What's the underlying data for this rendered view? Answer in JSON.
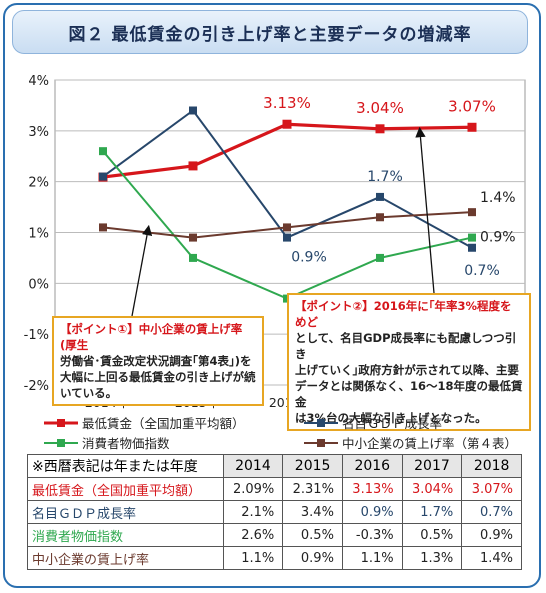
{
  "title": "図２ 最低賃金の引き上げ率と主要データの増減率",
  "colors": {
    "frame": "#2a6fb0",
    "min_wage": "#d6161b",
    "gdp": "#27476b",
    "cpi": "#2fa84f",
    "sme_wage": "#6b3a2e",
    "callout_border": "#e7a623"
  },
  "chart_data": {
    "type": "line",
    "categories": [
      "2014年",
      "2015年",
      "2016年",
      "2017年",
      "2018年"
    ],
    "y_ticks": [
      "4%",
      "3%",
      "2%",
      "1%",
      "0%",
      "-1%",
      "-2%"
    ],
    "ylim": [
      -2,
      4
    ],
    "grid": true,
    "legend_placement": "bottom",
    "series": [
      {
        "name": "最低賃金（全国加重平均額）",
        "key": "min_wage",
        "values": [
          2.09,
          2.31,
          3.13,
          3.04,
          3.07
        ],
        "marker": "square"
      },
      {
        "name": "名目ＧＤＰ成長率",
        "key": "gdp",
        "values": [
          2.1,
          3.4,
          0.9,
          1.7,
          0.7
        ],
        "marker": "square"
      },
      {
        "name": "消費者物価指数",
        "key": "cpi",
        "values": [
          2.6,
          0.5,
          -0.3,
          0.5,
          0.9
        ],
        "marker": "square"
      },
      {
        "name": "中小企業の賃上げ率（第４表）",
        "key": "sme_wage",
        "values": [
          1.1,
          0.9,
          1.1,
          1.3,
          1.4
        ],
        "marker": "square"
      }
    ],
    "data_labels": [
      {
        "series": "min_wage",
        "index": 2,
        "text": "3.13%"
      },
      {
        "series": "min_wage",
        "index": 3,
        "text": "3.04%"
      },
      {
        "series": "min_wage",
        "index": 4,
        "text": "3.07%"
      },
      {
        "series": "gdp",
        "index": 2,
        "text": "0.9%"
      },
      {
        "series": "gdp",
        "index": 3,
        "text": "1.7%"
      },
      {
        "series": "gdp",
        "index": 4,
        "text": "0.7%"
      },
      {
        "series": "cpi",
        "index": 4,
        "text": "0.9%"
      },
      {
        "series": "sme_wage",
        "index": 4,
        "text": "1.4%"
      }
    ]
  },
  "callouts": {
    "point1": {
      "line1": "【ポイント①】中小企業の賃上げ率(厚生",
      "line2": "労働省･賃金改定状況調査｢第4表｣)を",
      "line3": "大幅に上回る最低賃金の引き上げが続",
      "line4": "いている。"
    },
    "point2": {
      "line1": "【ポイント②】2016年に｢年率3%程度をめど",
      "line2": "として、名目GDP成長率にも配慮しつつ引き",
      "line3": "上げていく｣政府方針が示されて以降、主要",
      "line4": "データとは関係なく、16～18年度の最低賃金",
      "line5": "は3%台の大幅な引き上げとなった。"
    }
  },
  "legend": {
    "min_wage": "最低賃金（全国加重平均額）",
    "gdp": "名目ＧＤＰ成長率",
    "cpi": "消費者物価指数",
    "sme_wage": "中小企業の賃上げ率（第４表）"
  },
  "table": {
    "note": "※西暦表記は年または年度",
    "years": [
      "2014",
      "2015",
      "2016",
      "2017",
      "2018"
    ],
    "rows": [
      {
        "label": "最低賃金（全国加重平均額）",
        "values": [
          "2.09%",
          "2.31%",
          "3.13%",
          "3.04%",
          "3.07%"
        ]
      },
      {
        "label": "名目ＧＤＰ成長率",
        "values": [
          "2.1%",
          "3.4%",
          "0.9%",
          "1.7%",
          "0.7%"
        ]
      },
      {
        "label": "消費者物価指数",
        "values": [
          "2.6%",
          "0.5%",
          "-0.3%",
          "0.5%",
          "0.9%"
        ]
      },
      {
        "label": "中小企業の賃上げ率",
        "values": [
          "1.1%",
          "0.9%",
          "1.1%",
          "1.3%",
          "1.4%"
        ]
      }
    ]
  }
}
